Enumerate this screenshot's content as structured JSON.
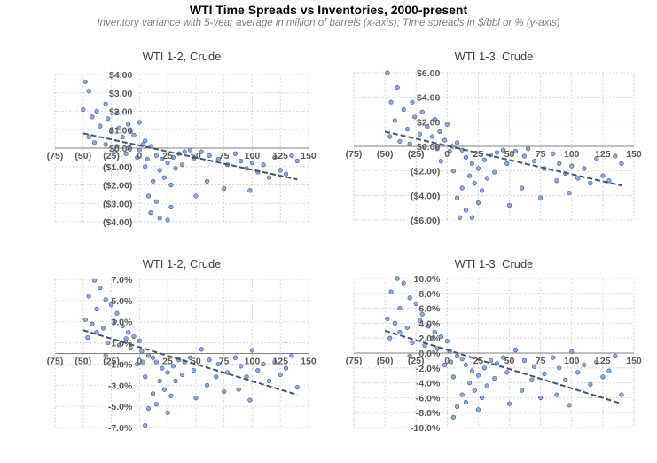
{
  "title": "WTI Time Spreads vs Inventories, 2000-present",
  "subtitle": "Inventory variance with 5-year average in million of barrels (x-axis); Time spreads in $/bbl or % (y-axis)",
  "colors": {
    "marker_fill": "#8ea9db",
    "marker_edge": "#44546a",
    "trend": "#44546a",
    "grid": "#d0d0d0"
  },
  "chart_data": [
    {
      "type": "scatter",
      "title": "WTI 1-2, Crude",
      "xlim": [
        -75,
        150
      ],
      "ylim": [
        -4,
        4
      ],
      "x_ticks": [
        -75,
        -50,
        -25,
        0,
        25,
        50,
        75,
        100,
        125,
        150
      ],
      "x_tick_labels": [
        "(75)",
        "(50)",
        "(25)",
        "0",
        "25",
        "50",
        "75",
        "100",
        "125",
        "150"
      ],
      "y_ticks": [
        4,
        3,
        2,
        1,
        0,
        -1,
        -2,
        -3,
        -4
      ],
      "y_tick_labels": [
        "$4.00",
        "$3.00",
        "$2.00",
        "$1.00",
        "$0.00",
        "($1.00)",
        "($2.00)",
        "($3.00)",
        "($4.00)"
      ],
      "grid": true,
      "trendline": {
        "x": [
          -50,
          140
        ],
        "y": [
          0.8,
          -1.7
        ]
      },
      "points": [
        [
          -48,
          3.6
        ],
        [
          -45,
          3.1
        ],
        [
          -50,
          2.1
        ],
        [
          -42,
          1.7
        ],
        [
          -38,
          2.0
        ],
        [
          -30,
          2.4
        ],
        [
          -20,
          1.9
        ],
        [
          -10,
          1.3
        ],
        [
          0,
          1.4
        ],
        [
          -35,
          1.2
        ],
        [
          -25,
          0.9
        ],
        [
          -15,
          0.6
        ],
        [
          -5,
          0.7
        ],
        [
          5,
          0.4
        ],
        [
          -45,
          0.6
        ],
        [
          -40,
          0.3
        ],
        [
          -30,
          0.2
        ],
        [
          -20,
          0.1
        ],
        [
          -10,
          0.0
        ],
        [
          0,
          -0.1
        ],
        [
          10,
          0.1
        ],
        [
          15,
          -0.4
        ],
        [
          20,
          -0.6
        ],
        [
          25,
          -0.8
        ],
        [
          30,
          -0.5
        ],
        [
          35,
          -0.3
        ],
        [
          40,
          -0.2
        ],
        [
          45,
          -0.1
        ],
        [
          18,
          -1.2
        ],
        [
          22,
          -1.6
        ],
        [
          28,
          -2.0
        ],
        [
          12,
          -1.8
        ],
        [
          8,
          -2.6
        ],
        [
          15,
          -2.9
        ],
        [
          10,
          -3.5
        ],
        [
          18,
          -3.8
        ],
        [
          25,
          -3.9
        ],
        [
          28,
          -3.2
        ],
        [
          5,
          -1.0
        ],
        [
          -2,
          -0.5
        ],
        [
          -12,
          -0.3
        ],
        [
          38,
          -0.9
        ],
        [
          48,
          -0.6
        ],
        [
          55,
          -0.2
        ],
        [
          62,
          -0.4
        ],
        [
          70,
          -0.6
        ],
        [
          78,
          -0.9
        ],
        [
          85,
          -0.3
        ],
        [
          90,
          -0.7
        ],
        [
          95,
          -1.1
        ],
        [
          100,
          -0.8
        ],
        [
          105,
          -1.3
        ],
        [
          110,
          -0.9
        ],
        [
          115,
          -1.6
        ],
        [
          120,
          -0.5
        ],
        [
          125,
          -1.2
        ],
        [
          130,
          -1.4
        ],
        [
          135,
          -0.4
        ],
        [
          140,
          -0.7
        ],
        [
          60,
          -1.8
        ],
        [
          75,
          -2.2
        ],
        [
          50,
          -2.6
        ],
        [
          98,
          -2.3
        ],
        [
          -28,
          1.6
        ],
        [
          -18,
          1.1
        ],
        [
          -8,
          0.9
        ],
        [
          3,
          0.2
        ],
        [
          -22,
          -0.2
        ],
        [
          7,
          -0.6
        ],
        [
          32,
          -1.1
        ]
      ]
    },
    {
      "type": "scatter",
      "title": "WTI 1-3, Crude",
      "xlim": [
        -75,
        150
      ],
      "ylim": [
        -6,
        6
      ],
      "x_ticks": [
        -75,
        -50,
        -25,
        0,
        25,
        50,
        75,
        100,
        125,
        150
      ],
      "x_tick_labels": [
        "(75)",
        "(50)",
        "(25)",
        "0",
        "25",
        "50",
        "75",
        "100",
        "125",
        "150"
      ],
      "y_ticks": [
        6,
        4,
        2,
        0,
        -2,
        -4,
        -6
      ],
      "y_tick_labels": [
        "$6.00",
        "$4.00",
        "$2.00",
        "$0.00",
        "($2.00)",
        "($4.00)",
        "($6.00)"
      ],
      "grid": true,
      "trendline": {
        "x": [
          -50,
          140
        ],
        "y": [
          1.2,
          -3.2
        ]
      },
      "points": [
        [
          -48,
          6.0
        ],
        [
          -40,
          4.8
        ],
        [
          -45,
          3.6
        ],
        [
          -35,
          3.0
        ],
        [
          -28,
          3.6
        ],
        [
          -20,
          2.8
        ],
        [
          -10,
          2.2
        ],
        [
          0,
          1.8
        ],
        [
          -42,
          2.1
        ],
        [
          -32,
          1.4
        ],
        [
          -22,
          1.0
        ],
        [
          -12,
          0.8
        ],
        [
          -2,
          0.5
        ],
        [
          8,
          0.3
        ],
        [
          -46,
          0.8
        ],
        [
          -38,
          0.4
        ],
        [
          -30,
          0.2
        ],
        [
          -18,
          0.0
        ],
        [
          -8,
          -0.2
        ],
        [
          2,
          -0.4
        ],
        [
          12,
          -0.3
        ],
        [
          15,
          -0.9
        ],
        [
          20,
          -1.4
        ],
        [
          25,
          -1.8
        ],
        [
          30,
          -1.1
        ],
        [
          35,
          -0.7
        ],
        [
          40,
          -0.5
        ],
        [
          45,
          -0.3
        ],
        [
          18,
          -2.4
        ],
        [
          22,
          -3.0
        ],
        [
          28,
          -3.6
        ],
        [
          12,
          -3.4
        ],
        [
          8,
          -4.2
        ],
        [
          15,
          -5.2
        ],
        [
          10,
          -5.8
        ],
        [
          20,
          -5.8
        ],
        [
          25,
          -4.6
        ],
        [
          5,
          -2.0
        ],
        [
          -5,
          -1.2
        ],
        [
          38,
          -2.1
        ],
        [
          48,
          -1.4
        ],
        [
          55,
          -0.4
        ],
        [
          62,
          -0.8
        ],
        [
          70,
          -1.2
        ],
        [
          78,
          -1.8
        ],
        [
          85,
          -0.6
        ],
        [
          90,
          -1.4
        ],
        [
          95,
          -2.2
        ],
        [
          100,
          -1.6
        ],
        [
          105,
          -2.6
        ],
        [
          110,
          -1.8
        ],
        [
          115,
          -3.0
        ],
        [
          120,
          -1.0
        ],
        [
          125,
          -2.4
        ],
        [
          130,
          -2.8
        ],
        [
          135,
          -0.8
        ],
        [
          140,
          -1.4
        ],
        [
          60,
          -3.4
        ],
        [
          75,
          -4.2
        ],
        [
          50,
          -4.8
        ],
        [
          98,
          -3.8
        ],
        [
          -26,
          2.4
        ],
        [
          -16,
          1.6
        ],
        [
          -6,
          1.2
        ],
        [
          4,
          0.0
        ],
        [
          32,
          -2.6
        ],
        [
          65,
          -0.2
        ],
        [
          88,
          -2.8
        ]
      ]
    },
    {
      "type": "scatter",
      "title": "WTI 1-2, Crude",
      "xlim": [
        -75,
        150
      ],
      "ylim": [
        -7,
        7
      ],
      "x_ticks": [
        -75,
        -50,
        -25,
        0,
        25,
        50,
        75,
        100,
        125,
        150
      ],
      "x_tick_labels": [
        "(75)",
        "(50)",
        "(25)",
        "0",
        "25",
        "50",
        "75",
        "100",
        "125",
        "150"
      ],
      "y_ticks": [
        7,
        5,
        3,
        1,
        -1,
        -3,
        -5,
        -7
      ],
      "y_tick_labels": [
        "7.0%",
        "5.0%",
        "3.0%",
        "1.0%",
        "-1.0%",
        "-3.0%",
        "-5.0%",
        "-7.0%"
      ],
      "grid": true,
      "trendline": {
        "x": [
          -50,
          140
        ],
        "y": [
          2.2,
          -3.9
        ]
      },
      "points": [
        [
          -40,
          6.9
        ],
        [
          -35,
          6.2
        ],
        [
          -45,
          5.4
        ],
        [
          -30,
          5.1
        ],
        [
          -25,
          4.6
        ],
        [
          -38,
          4.2
        ],
        [
          -20,
          3.8
        ],
        [
          -48,
          3.2
        ],
        [
          -42,
          2.8
        ],
        [
          -32,
          2.4
        ],
        [
          -15,
          2.6
        ],
        [
          -10,
          2.0
        ],
        [
          -5,
          1.6
        ],
        [
          0,
          1.2
        ],
        [
          -46,
          1.5
        ],
        [
          -28,
          1.0
        ],
        [
          -18,
          0.8
        ],
        [
          -8,
          0.5
        ],
        [
          2,
          0.2
        ],
        [
          8,
          -0.2
        ],
        [
          12,
          -0.4
        ],
        [
          15,
          -0.8
        ],
        [
          20,
          -1.4
        ],
        [
          25,
          -1.8
        ],
        [
          30,
          -1.2
        ],
        [
          35,
          -0.6
        ],
        [
          40,
          -0.8
        ],
        [
          45,
          -0.4
        ],
        [
          18,
          -2.6
        ],
        [
          22,
          -3.4
        ],
        [
          28,
          -4.0
        ],
        [
          12,
          -3.8
        ],
        [
          8,
          -5.2
        ],
        [
          5,
          -6.8
        ],
        [
          15,
          -4.8
        ],
        [
          25,
          -5.6
        ],
        [
          5,
          -2.2
        ],
        [
          -2,
          -1.0
        ],
        [
          38,
          -2.0
        ],
        [
          48,
          -1.6
        ],
        [
          55,
          0.4
        ],
        [
          62,
          -0.6
        ],
        [
          70,
          -1.0
        ],
        [
          78,
          -1.8
        ],
        [
          85,
          -0.4
        ],
        [
          90,
          -1.2
        ],
        [
          95,
          -2.2
        ],
        [
          100,
          0.3
        ],
        [
          105,
          -1.6
        ],
        [
          110,
          -1.0
        ],
        [
          115,
          -2.6
        ],
        [
          120,
          -0.8
        ],
        [
          125,
          -2.0
        ],
        [
          130,
          -1.4
        ],
        [
          135,
          -0.2
        ],
        [
          140,
          -3.2
        ],
        [
          60,
          -3.0
        ],
        [
          75,
          -3.6
        ],
        [
          50,
          -4.2
        ],
        [
          98,
          -4.4
        ],
        [
          -22,
          3.0
        ],
        [
          -12,
          1.4
        ],
        [
          -38,
          2.0
        ],
        [
          3,
          -0.8
        ],
        [
          32,
          -2.6
        ],
        [
          68,
          -2.2
        ],
        [
          88,
          -3.4
        ],
        [
          -30,
          -0.2
        ]
      ]
    },
    {
      "type": "scatter",
      "title": "WTI 1-3, Crude",
      "xlim": [
        -75,
        150
      ],
      "ylim": [
        -10,
        10
      ],
      "x_ticks": [
        -75,
        -50,
        -25,
        0,
        25,
        50,
        75,
        100,
        125,
        150
      ],
      "x_tick_labels": [
        "(75)",
        "(50)",
        "(25)",
        "0",
        "25",
        "50",
        "75",
        "100",
        "125",
        "150"
      ],
      "y_ticks": [
        10,
        8,
        6,
        4,
        2,
        0,
        -2,
        -4,
        -6,
        -8,
        -10
      ],
      "y_tick_labels": [
        "10.0%",
        "8.0%",
        "6.0%",
        "4.0%",
        "2.0%",
        "0.0%",
        "-2.0%",
        "-4.0%",
        "-6.0%",
        "-8.0%",
        "-10.0%"
      ],
      "grid": true,
      "trendline": {
        "x": [
          -50,
          140
        ],
        "y": [
          3.0,
          -6.8
        ]
      },
      "points": [
        [
          -40,
          10.0
        ],
        [
          -35,
          9.4
        ],
        [
          -45,
          8.2
        ],
        [
          -30,
          7.4
        ],
        [
          -25,
          6.6
        ],
        [
          -38,
          6.0
        ],
        [
          -20,
          5.2
        ],
        [
          -48,
          4.6
        ],
        [
          -42,
          4.0
        ],
        [
          -32,
          3.4
        ],
        [
          -15,
          3.6
        ],
        [
          -10,
          2.8
        ],
        [
          -5,
          2.2
        ],
        [
          0,
          1.6
        ],
        [
          -46,
          2.0
        ],
        [
          -28,
          1.4
        ],
        [
          -18,
          1.0
        ],
        [
          -8,
          0.6
        ],
        [
          2,
          0.2
        ],
        [
          8,
          -0.4
        ],
        [
          12,
          -0.8
        ],
        [
          15,
          -1.6
        ],
        [
          20,
          -2.4
        ],
        [
          25,
          -3.0
        ],
        [
          30,
          -2.0
        ],
        [
          35,
          -1.0
        ],
        [
          40,
          -1.4
        ],
        [
          45,
          -0.6
        ],
        [
          18,
          -4.0
        ],
        [
          22,
          -5.0
        ],
        [
          28,
          -6.0
        ],
        [
          12,
          -5.6
        ],
        [
          8,
          -7.2
        ],
        [
          5,
          -8.6
        ],
        [
          15,
          -6.6
        ],
        [
          25,
          -7.6
        ],
        [
          5,
          -3.2
        ],
        [
          -2,
          -1.6
        ],
        [
          38,
          -3.4
        ],
        [
          48,
          -2.6
        ],
        [
          55,
          0.4
        ],
        [
          62,
          -1.0
        ],
        [
          70,
          -1.8
        ],
        [
          78,
          -2.8
        ],
        [
          85,
          -0.6
        ],
        [
          90,
          -2.0
        ],
        [
          95,
          -3.6
        ],
        [
          100,
          0.2
        ],
        [
          105,
          -2.6
        ],
        [
          110,
          -1.6
        ],
        [
          115,
          -4.2
        ],
        [
          120,
          -1.2
        ],
        [
          125,
          -3.2
        ],
        [
          130,
          -2.4
        ],
        [
          135,
          -0.4
        ],
        [
          140,
          -5.6
        ],
        [
          60,
          -5.0
        ],
        [
          75,
          -6.0
        ],
        [
          50,
          -6.8
        ],
        [
          98,
          -7.0
        ],
        [
          -22,
          4.4
        ],
        [
          -12,
          2.0
        ],
        [
          -38,
          2.8
        ],
        [
          3,
          -1.2
        ],
        [
          32,
          -4.4
        ],
        [
          68,
          -3.6
        ],
        [
          88,
          -5.6
        ],
        [
          -30,
          -0.4
        ]
      ]
    }
  ]
}
